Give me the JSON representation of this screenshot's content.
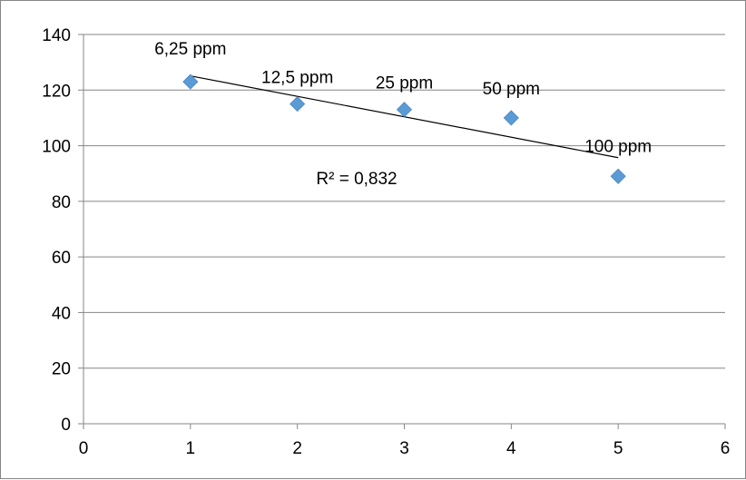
{
  "chart_data": {
    "type": "scatter",
    "title": "",
    "xlabel": "",
    "ylabel": "",
    "xlim": [
      0,
      6
    ],
    "ylim": [
      0,
      140
    ],
    "x_ticks": [
      0,
      1,
      2,
      3,
      4,
      5,
      6
    ],
    "y_ticks": [
      0,
      20,
      40,
      60,
      80,
      100,
      120,
      140
    ],
    "grid": "horizontal",
    "legend": "none",
    "series": [
      {
        "marker": "diamond",
        "color": "#5B9BD5",
        "points": [
          {
            "x": 1,
            "y": 123,
            "label": "6,25 ppm"
          },
          {
            "x": 2,
            "y": 115,
            "label": "12,5 ppm"
          },
          {
            "x": 3,
            "y": 113,
            "label": "25 ppm"
          },
          {
            "x": 4,
            "y": 110,
            "label": "50 ppm"
          },
          {
            "x": 5,
            "y": 89,
            "label": "100 ppm"
          }
        ]
      }
    ],
    "trendline": {
      "type": "linear",
      "color": "#000000",
      "x_range": [
        1,
        5
      ],
      "y_start": 125.1,
      "y_end": 95.7,
      "annotation": "R² = 0,832"
    }
  }
}
